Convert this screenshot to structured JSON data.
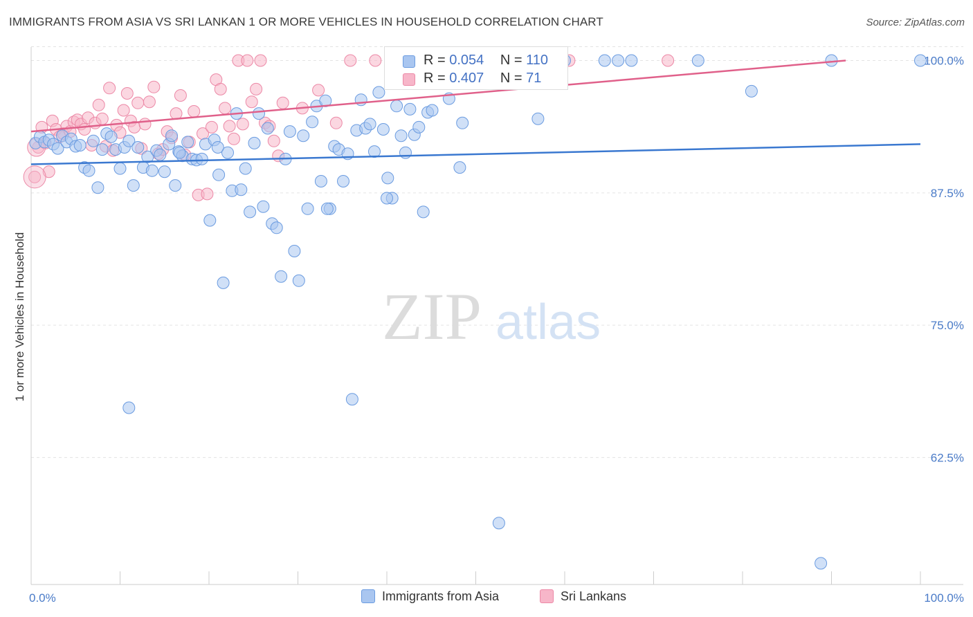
{
  "title": "IMMIGRANTS FROM ASIA VS SRI LANKAN 1 OR MORE VEHICLES IN HOUSEHOLD CORRELATION CHART",
  "source": "Source: ZipAtlas.com",
  "watermark": {
    "zip": "ZIP",
    "atlas": "atlas"
  },
  "legend": {
    "rows": [
      {
        "r_label": "R = ",
        "r_value": "0.054",
        "n_label": "N = ",
        "n_value": "110"
      },
      {
        "r_label": "R = ",
        "r_value": "0.407",
        "n_label": "N = ",
        "n_value": "71"
      }
    ]
  },
  "bottom_legend": {
    "asia": "Immigrants from Asia",
    "srilanka": "Sri Lankans"
  },
  "colors": {
    "asia_fill": "#a9c6f0",
    "asia_stroke": "#6a9be0",
    "asia_line": "#3a78d0",
    "srilanka_fill": "#f7b6c9",
    "srilanka_stroke": "#ec88a6",
    "srilanka_line": "#e0608a",
    "tick": "#4a7bc8"
  },
  "chart_data": {
    "type": "scatter",
    "title": "IMMIGRANTS FROM ASIA VS SRI LANKAN 1 OR MORE VEHICLES IN HOUSEHOLD CORRELATION CHART",
    "xlabel": "",
    "ylabel": "1 or more Vehicles in Household",
    "xlim": [
      0,
      100
    ],
    "ylim": [
      50.5,
      101.8
    ],
    "x_tick_labels": [
      "0.0%",
      "100.0%"
    ],
    "y_ticks": [
      100,
      87.5,
      75,
      62.5
    ],
    "y_tick_labels": [
      "100.0%",
      "87.5%",
      "75.0%",
      "62.5%"
    ],
    "grid": true,
    "legend_position": "top-center",
    "series": [
      {
        "name": "Immigrants from Asia",
        "trend": [
          [
            0,
            90.2
          ],
          [
            100,
            92.1
          ]
        ],
        "points": [
          [
            0.5,
            92.2
          ],
          [
            1,
            92.8
          ],
          [
            1.5,
            92.3
          ],
          [
            2,
            92.5
          ],
          [
            2.5,
            92.1
          ],
          [
            3,
            91.7
          ],
          [
            3.5,
            92.9
          ],
          [
            4,
            92.3
          ],
          [
            4.5,
            92.6
          ],
          [
            5,
            91.9
          ],
          [
            5.5,
            92.0
          ],
          [
            6,
            89.9
          ],
          [
            6.5,
            89.6
          ],
          [
            7,
            92.4
          ],
          [
            7.5,
            88.0
          ],
          [
            8,
            91.6
          ],
          [
            8.5,
            93.1
          ],
          [
            9,
            92.8
          ],
          [
            9.5,
            91.6
          ],
          [
            10,
            89.8
          ],
          [
            10.5,
            91.8
          ],
          [
            11,
            92.4
          ],
          [
            11.5,
            88.2
          ],
          [
            12,
            91.8
          ],
          [
            12.6,
            89.9
          ],
          [
            13.1,
            90.9
          ],
          [
            13.6,
            89.6
          ],
          [
            14.1,
            91.5
          ],
          [
            14.5,
            91.1
          ],
          [
            15,
            89.5
          ],
          [
            15.5,
            92.1
          ],
          [
            15.8,
            92.9
          ],
          [
            16.2,
            88.2
          ],
          [
            16.6,
            91.4
          ],
          [
            17.0,
            91.0
          ],
          [
            17.6,
            92.3
          ],
          [
            18.1,
            90.7
          ],
          [
            18.6,
            90.6
          ],
          [
            19.2,
            90.7
          ],
          [
            19.6,
            92.1
          ],
          [
            20.1,
            84.9
          ],
          [
            20.6,
            92.5
          ],
          [
            21.1,
            89.2
          ],
          [
            21.6,
            79.0
          ],
          [
            22.1,
            91.3
          ],
          [
            22.6,
            87.7
          ],
          [
            23.1,
            95.0
          ],
          [
            23.6,
            87.8
          ],
          [
            24.1,
            89.8
          ],
          [
            24.6,
            85.7
          ],
          [
            25.1,
            92.2
          ],
          [
            25.6,
            95.0
          ],
          [
            26.1,
            86.2
          ],
          [
            26.6,
            93.6
          ],
          [
            27.1,
            84.6
          ],
          [
            27.6,
            84.2
          ],
          [
            28.1,
            79.6
          ],
          [
            28.6,
            90.7
          ],
          [
            29.1,
            93.3
          ],
          [
            29.6,
            82.0
          ],
          [
            30.1,
            79.2
          ],
          [
            30.6,
            92.9
          ],
          [
            31.1,
            86.0
          ],
          [
            31.6,
            94.2
          ],
          [
            32.1,
            95.7
          ],
          [
            32.6,
            88.6
          ],
          [
            33.1,
            96.2
          ],
          [
            33.6,
            86.0
          ],
          [
            34.1,
            91.9
          ],
          [
            34.6,
            91.6
          ],
          [
            35.1,
            88.6
          ],
          [
            35.6,
            91.2
          ],
          [
            36.1,
            68.0
          ],
          [
            36.6,
            93.4
          ],
          [
            37.1,
            96.3
          ],
          [
            37.6,
            93.6
          ],
          [
            38.1,
            94.0
          ],
          [
            38.6,
            91.4
          ],
          [
            39.1,
            97.0
          ],
          [
            39.6,
            93.5
          ],
          [
            40.1,
            88.9
          ],
          [
            40.6,
            87.0
          ],
          [
            41.1,
            95.7
          ],
          [
            41.6,
            92.9
          ],
          [
            42.1,
            91.3
          ],
          [
            42.6,
            95.4
          ],
          [
            43.1,
            93.0
          ],
          [
            43.6,
            93.7
          ],
          [
            44.1,
            85.7
          ],
          [
            44.6,
            95.1
          ],
          [
            45.1,
            95.3
          ],
          [
            47.0,
            96.4
          ],
          [
            48.2,
            89.9
          ],
          [
            48.5,
            94.1
          ],
          [
            52.6,
            56.3
          ],
          [
            57.0,
            94.5
          ],
          [
            60.0,
            100.0
          ],
          [
            64.5,
            100.0
          ],
          [
            66.0,
            100.0
          ],
          [
            67.5,
            100.0
          ],
          [
            75.0,
            100.0
          ],
          [
            81.0,
            97.1
          ],
          [
            90.0,
            100.0
          ],
          [
            11.0,
            67.2
          ],
          [
            16.7,
            91.3
          ],
          [
            21.0,
            91.8
          ],
          [
            33.3,
            86.0
          ],
          [
            40.0,
            87.0
          ],
          [
            88.8,
            52.5
          ],
          [
            100.0,
            100.0
          ]
        ]
      },
      {
        "name": "Sri Lankans",
        "trend": [
          [
            0,
            93.3
          ],
          [
            91.6,
            100.0
          ]
        ],
        "points": [
          [
            0.4,
            89.0
          ],
          [
            0.8,
            91.8
          ],
          [
            1.2,
            93.7
          ],
          [
            1.6,
            92.2
          ],
          [
            2.0,
            89.5
          ],
          [
            2.4,
            94.3
          ],
          [
            2.8,
            93.5
          ],
          [
            3.2,
            92.8
          ],
          [
            3.6,
            93.1
          ],
          [
            4.0,
            93.8
          ],
          [
            4.4,
            93.3
          ],
          [
            4.8,
            94.2
          ],
          [
            5.2,
            94.4
          ],
          [
            5.6,
            94.0
          ],
          [
            6.0,
            93.5
          ],
          [
            6.4,
            94.6
          ],
          [
            6.8,
            92.0
          ],
          [
            7.2,
            94.1
          ],
          [
            7.6,
            95.8
          ],
          [
            8.0,
            94.5
          ],
          [
            8.4,
            91.9
          ],
          [
            8.8,
            97.4
          ],
          [
            9.2,
            91.5
          ],
          [
            9.6,
            93.9
          ],
          [
            10.0,
            93.2
          ],
          [
            10.4,
            95.3
          ],
          [
            10.8,
            96.9
          ],
          [
            11.2,
            94.3
          ],
          [
            11.6,
            93.7
          ],
          [
            12.0,
            96.0
          ],
          [
            12.4,
            91.7
          ],
          [
            12.8,
            94.0
          ],
          [
            13.3,
            96.1
          ],
          [
            13.8,
            97.5
          ],
          [
            14.3,
            91.2
          ],
          [
            14.8,
            91.6
          ],
          [
            15.3,
            93.3
          ],
          [
            15.8,
            92.7
          ],
          [
            16.3,
            95.0
          ],
          [
            16.8,
            96.7
          ],
          [
            17.3,
            91.1
          ],
          [
            17.8,
            92.3
          ],
          [
            18.3,
            95.2
          ],
          [
            18.8,
            87.3
          ],
          [
            19.3,
            93.1
          ],
          [
            19.8,
            87.4
          ],
          [
            20.3,
            93.7
          ],
          [
            20.8,
            98.2
          ],
          [
            21.3,
            97.3
          ],
          [
            21.8,
            95.5
          ],
          [
            22.3,
            93.8
          ],
          [
            22.8,
            92.6
          ],
          [
            23.3,
            100.0
          ],
          [
            23.8,
            94.0
          ],
          [
            24.3,
            100.0
          ],
          [
            24.8,
            96.1
          ],
          [
            25.3,
            97.3
          ],
          [
            25.8,
            100.0
          ],
          [
            26.3,
            94.1
          ],
          [
            26.8,
            93.8
          ],
          [
            27.3,
            92.4
          ],
          [
            27.8,
            91.0
          ],
          [
            28.3,
            96.0
          ],
          [
            30.5,
            95.5
          ],
          [
            32.3,
            97.2
          ],
          [
            34.3,
            94.1
          ],
          [
            35.9,
            100.0
          ],
          [
            38.7,
            100.0
          ],
          [
            46.4,
            100.0
          ],
          [
            60.5,
            100.0
          ],
          [
            71.6,
            100.0
          ]
        ]
      }
    ]
  }
}
